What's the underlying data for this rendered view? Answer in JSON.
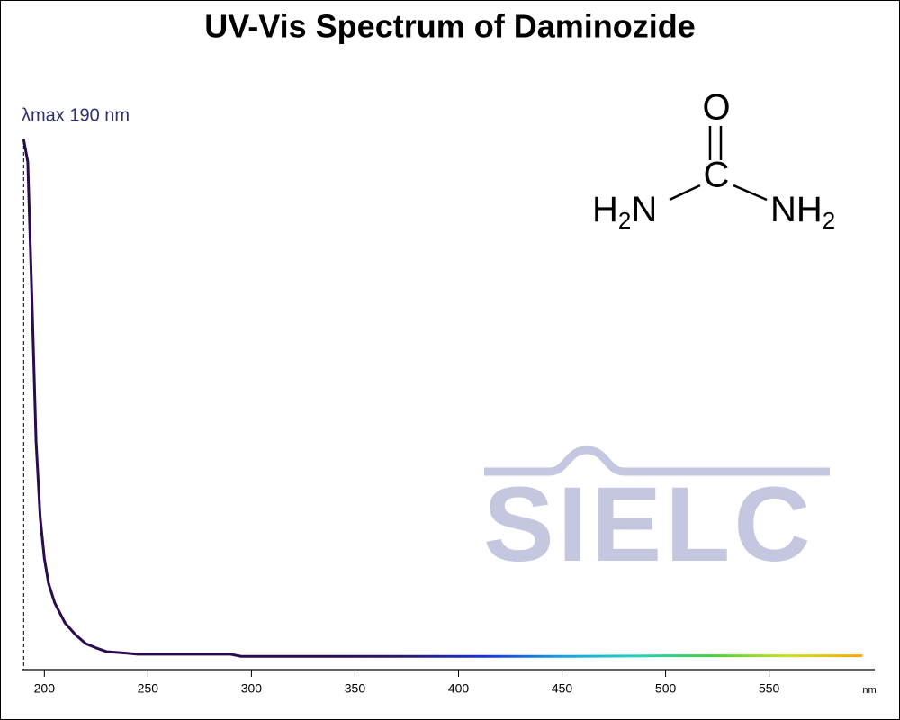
{
  "chart_data": {
    "type": "line",
    "title": "UV-Vis Spectrum of Daminozide",
    "annotation": "λmax  190 nm",
    "x_unit": "nm",
    "x": [
      190,
      192,
      194,
      196,
      198,
      200,
      202,
      205,
      210,
      215,
      220,
      225,
      230,
      240,
      245,
      290,
      295,
      300,
      350,
      400,
      450,
      500,
      550,
      595
    ],
    "values": [
      1.0,
      0.958,
      0.7,
      0.43,
      0.287,
      0.21,
      0.163,
      0.126,
      0.088,
      0.066,
      0.049,
      0.041,
      0.034,
      0.031,
      0.029,
      0.029,
      0.025,
      0.025,
      0.025,
      0.025,
      0.025,
      0.026,
      0.026,
      0.026
    ],
    "line_colors": [
      "#2a0c4e",
      "#2a0c4e",
      "#2a0c4e",
      "#2a0c4e",
      "#2a0c4e",
      "#2a1a6e",
      "#1a2fd0",
      "#1a9be0",
      "#20d0c0",
      "#40d040",
      "#c8e020",
      "#ffa500"
    ],
    "xlim": [
      189,
      601
    ],
    "ylim": [
      0,
      1
    ],
    "xticks": [
      200,
      250,
      300,
      350,
      400,
      450,
      500,
      550
    ],
    "structure": {
      "top": "O",
      "center": "C",
      "left": [
        "H",
        "2",
        "N"
      ],
      "right": [
        "NH",
        "2"
      ]
    },
    "watermark": "SIELC"
  }
}
